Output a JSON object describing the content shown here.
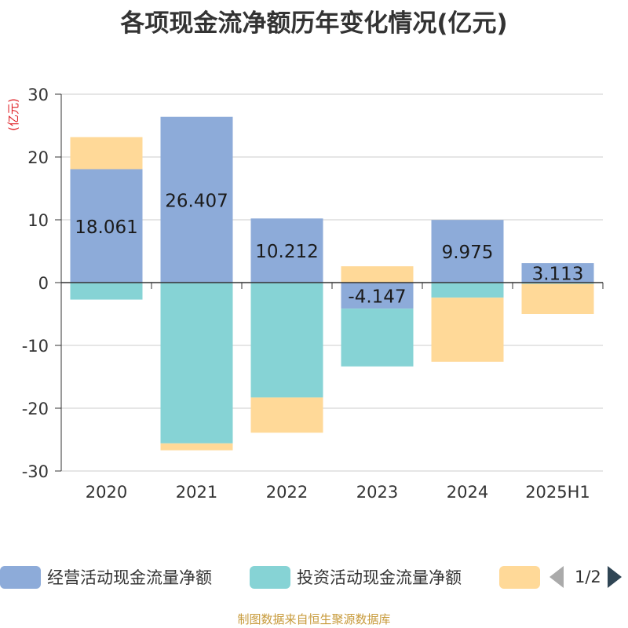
{
  "title": "各项现金流净额历年变化情况(亿元)",
  "source": "制图数据来自恒生聚源数据库",
  "legend_page": "1/2",
  "colors": {
    "operating": "#8dabd9",
    "investing": "#86d3d5",
    "financing": "#ffd998"
  },
  "chart_data": {
    "type": "bar",
    "stacked": true,
    "title": "各项现金流净额历年变化情况(亿元)",
    "ylabel": "(亿元)",
    "ylim": [
      -30,
      30
    ],
    "yticks": [
      "30",
      "20",
      "10",
      "0",
      "-10",
      "-20",
      "-30"
    ],
    "categories": [
      "2020",
      "2021",
      "2022",
      "2023",
      "2024",
      "2025H1"
    ],
    "series": [
      {
        "name": "经营活动现金流量净额",
        "values": [
          18.061,
          26.407,
          10.212,
          -4.147,
          9.975,
          3.113
        ],
        "labels": [
          "18.061",
          "26.407",
          "10.212",
          "-4.147",
          "9.975",
          "3.113"
        ]
      },
      {
        "name": "投资活动现金流量净额",
        "values": [
          -2.7,
          -25.6,
          -18.3,
          -9.2,
          -2.4,
          -0.2
        ]
      },
      {
        "name": "",
        "values": [
          5.1,
          -1.1,
          -5.6,
          2.6,
          -10.2,
          -4.8
        ]
      }
    ],
    "grid": true,
    "legend_position": "bottom"
  }
}
